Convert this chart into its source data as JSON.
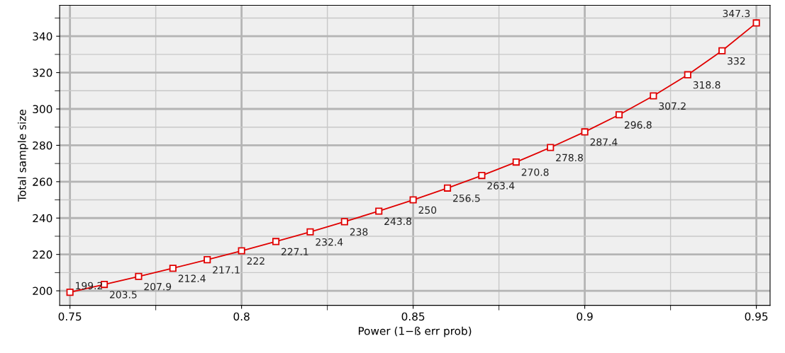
{
  "chart_data": {
    "type": "line",
    "xlabel": "Power (1−ß err prob)",
    "ylabel": "Total sample size",
    "x": [
      0.75,
      0.76,
      0.77,
      0.78,
      0.79,
      0.8,
      0.81,
      0.82,
      0.83,
      0.84,
      0.85,
      0.86,
      0.87,
      0.88,
      0.89,
      0.9,
      0.91,
      0.92,
      0.93,
      0.94,
      0.95
    ],
    "series": [
      {
        "color": "#e00000",
        "values": [
          199.2,
          203.5,
          207.9,
          212.4,
          217.1,
          222,
          227.1,
          232.4,
          238,
          243.8,
          250,
          256.5,
          263.4,
          270.8,
          278.8,
          287.4,
          296.8,
          307.2,
          318.8,
          332,
          347.3
        ]
      }
    ],
    "xlim": [
      0.747,
      0.954
    ],
    "ylim": [
      192,
      357
    ],
    "xticks": [
      0.75,
      0.8,
      0.85,
      0.9,
      0.95
    ],
    "yticks": [
      200,
      220,
      240,
      260,
      280,
      300,
      320,
      340
    ],
    "grid": true,
    "marker": "square",
    "line_style": "solid",
    "data_labels": true
  }
}
